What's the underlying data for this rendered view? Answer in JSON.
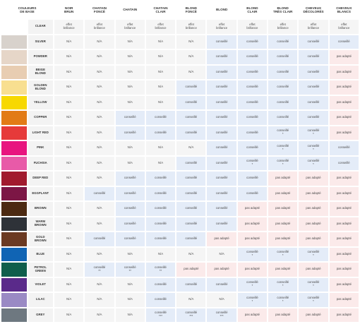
{
  "header": {
    "base_colors": "COULEURS\nDE BASE",
    "columns": [
      "NOIR\nBRUN",
      "CHATAIN\nFONCÉ",
      "CHATAIN",
      "CHATAIN\nCLAIR",
      "BLOND\nFONCÉ",
      "BLOND",
      "BLOND\nCLAIR",
      "BLOND\nTRÈS CLAIR",
      "CHEVEUX\nDÉCOLORÉS",
      "CHEVEUX\nBLANCS"
    ]
  },
  "colors": {
    "na_bg": "#f5f5f5",
    "conseille_bg": "#e4ecf8",
    "pas_adapte_bg": "#fbeaea"
  },
  "rows": [
    {
      "name": "CLEAR",
      "swatch": "#ffffff",
      "cells": [
        {
          "t": "effet\nbrillance",
          "s": "ef"
        },
        {
          "t": "effet\nbrillance",
          "s": "ef"
        },
        {
          "t": "effet\nbrillance",
          "s": "ef"
        },
        {
          "t": "effet\nbrillance",
          "s": "ef"
        },
        {
          "t": "effet\nbrillance",
          "s": "ef"
        },
        {
          "t": "effet\nbrillance",
          "s": "ef"
        },
        {
          "t": "effet\nbrillance",
          "s": "ef"
        },
        {
          "t": "effet\nbrillance",
          "s": "ef"
        },
        {
          "t": "effet\nbrillance",
          "s": "ef"
        },
        {
          "t": "effet\nbrillance",
          "s": "ef"
        }
      ]
    },
    {
      "name": "SILVER",
      "swatch": "#d8d2cc",
      "cells": [
        {
          "t": "N/A",
          "s": "na"
        },
        {
          "t": "N/A",
          "s": "na"
        },
        {
          "t": "N/A",
          "s": "na"
        },
        {
          "t": "N/A",
          "s": "na"
        },
        {
          "t": "N/A",
          "s": "na"
        },
        {
          "t": "conseillé",
          "s": "co"
        },
        {
          "t": "conseillé",
          "s": "co"
        },
        {
          "t": "conseillé",
          "s": "co"
        },
        {
          "t": "conseillé",
          "s": "co"
        },
        {
          "t": "conseillé",
          "s": "co"
        }
      ]
    },
    {
      "name": "POWDER",
      "swatch": "#e6d6c8",
      "cells": [
        {
          "t": "N/A",
          "s": "na"
        },
        {
          "t": "N/A",
          "s": "na"
        },
        {
          "t": "N/A",
          "s": "na"
        },
        {
          "t": "N/A",
          "s": "na"
        },
        {
          "t": "N/A",
          "s": "na"
        },
        {
          "t": "conseillé",
          "s": "co"
        },
        {
          "t": "conseillé",
          "s": "co"
        },
        {
          "t": "conseillé",
          "s": "co"
        },
        {
          "t": "conseillé",
          "s": "co"
        },
        {
          "t": "pas adapté",
          "s": "pa"
        }
      ]
    },
    {
      "name": "BEIGE\nBLOND",
      "swatch": "#e8cdb2",
      "cells": [
        {
          "t": "N/A",
          "s": "na"
        },
        {
          "t": "N/A",
          "s": "na"
        },
        {
          "t": "N/A",
          "s": "na"
        },
        {
          "t": "N/A",
          "s": "na"
        },
        {
          "t": "N/A",
          "s": "na"
        },
        {
          "t": "conseillé",
          "s": "co"
        },
        {
          "t": "conseillé",
          "s": "co"
        },
        {
          "t": "conseillé",
          "s": "co"
        },
        {
          "t": "conseillé",
          "s": "co"
        },
        {
          "t": "pas adapté",
          "s": "pa"
        }
      ]
    },
    {
      "name": "GOLDEN\nBLOND",
      "swatch": "#f8df90",
      "cells": [
        {
          "t": "N/A",
          "s": "na"
        },
        {
          "t": "N/A",
          "s": "na"
        },
        {
          "t": "N/A",
          "s": "na"
        },
        {
          "t": "N/A",
          "s": "na"
        },
        {
          "t": "conseillé",
          "s": "co"
        },
        {
          "t": "conseillé",
          "s": "co"
        },
        {
          "t": "conseillé",
          "s": "co"
        },
        {
          "t": "conseillé",
          "s": "co"
        },
        {
          "t": "conseillé",
          "s": "co"
        },
        {
          "t": "pas adapté",
          "s": "pa"
        }
      ]
    },
    {
      "name": "YELLOW",
      "swatch": "#f7d800",
      "cells": [
        {
          "t": "N/A",
          "s": "na"
        },
        {
          "t": "N/A",
          "s": "na"
        },
        {
          "t": "N/A",
          "s": "na"
        },
        {
          "t": "N/A",
          "s": "na"
        },
        {
          "t": "conseillé",
          "s": "co"
        },
        {
          "t": "conseillé",
          "s": "co"
        },
        {
          "t": "conseillé",
          "s": "co"
        },
        {
          "t": "conseillé",
          "s": "co"
        },
        {
          "t": "conseillé",
          "s": "co"
        },
        {
          "t": "pas adapté",
          "s": "pa"
        }
      ]
    },
    {
      "name": "COPPER",
      "swatch": "#e27b16",
      "cells": [
        {
          "t": "N/A",
          "s": "na"
        },
        {
          "t": "N/A",
          "s": "na"
        },
        {
          "t": "conseillé",
          "s": "co"
        },
        {
          "t": "conseillé",
          "s": "co"
        },
        {
          "t": "conseillé",
          "s": "co"
        },
        {
          "t": "conseillé",
          "s": "co"
        },
        {
          "t": "conseillé",
          "s": "co"
        },
        {
          "t": "conseillé",
          "s": "co"
        },
        {
          "t": "conseillé",
          "s": "co"
        },
        {
          "t": "pas adapté",
          "s": "pa"
        }
      ]
    },
    {
      "name": "LIGHT RED",
      "swatch": "#e63a3a",
      "cells": [
        {
          "t": "N/A",
          "s": "na"
        },
        {
          "t": "N/A",
          "s": "na"
        },
        {
          "t": "conseillé",
          "s": "co"
        },
        {
          "t": "conseillé",
          "s": "co"
        },
        {
          "t": "conseillé",
          "s": "co"
        },
        {
          "t": "conseillé",
          "s": "co"
        },
        {
          "t": "conseillé",
          "s": "co"
        },
        {
          "t": "conseillé\n*",
          "s": "co"
        },
        {
          "t": "conseillé\n*",
          "s": "co"
        },
        {
          "t": "pas adapté",
          "s": "pa"
        }
      ]
    },
    {
      "name": "PINK",
      "swatch": "#e8157f",
      "cells": [
        {
          "t": "N/A",
          "s": "na"
        },
        {
          "t": "N/A",
          "s": "na"
        },
        {
          "t": "N/A",
          "s": "na"
        },
        {
          "t": "N/A",
          "s": "na"
        },
        {
          "t": "N/A",
          "s": "na"
        },
        {
          "t": "conseillé",
          "s": "co"
        },
        {
          "t": "conseillé",
          "s": "co"
        },
        {
          "t": "conseillé\n*",
          "s": "co"
        },
        {
          "t": "conseillé\n*",
          "s": "co"
        },
        {
          "t": "conseillé",
          "s": "co"
        }
      ]
    },
    {
      "name": "FUCHSIA",
      "swatch": "#e85aa8",
      "cells": [
        {
          "t": "N/A",
          "s": "na"
        },
        {
          "t": "N/A",
          "s": "na"
        },
        {
          "t": "N/A",
          "s": "na"
        },
        {
          "t": "N/A",
          "s": "na"
        },
        {
          "t": "conseillé",
          "s": "co"
        },
        {
          "t": "conseillé",
          "s": "co"
        },
        {
          "t": "conseillé\n*",
          "s": "co"
        },
        {
          "t": "conseillé\n*",
          "s": "co"
        },
        {
          "t": "conseillé\n*",
          "s": "co"
        },
        {
          "t": "conseillé",
          "s": "co"
        }
      ]
    },
    {
      "name": "DEEP RED",
      "swatch": "#a11a2e",
      "cells": [
        {
          "t": "N/A",
          "s": "na"
        },
        {
          "t": "N/A",
          "s": "na"
        },
        {
          "t": "conseillé",
          "s": "co"
        },
        {
          "t": "conseillé",
          "s": "co"
        },
        {
          "t": "conseillé",
          "s": "co"
        },
        {
          "t": "conseillé",
          "s": "co"
        },
        {
          "t": "conseillé",
          "s": "co"
        },
        {
          "t": "pas adapté",
          "s": "pa"
        },
        {
          "t": "pas adapté",
          "s": "pa"
        },
        {
          "t": "pas adapté",
          "s": "pa"
        }
      ]
    },
    {
      "name": "EGGPLANT",
      "swatch": "#7c1645",
      "cells": [
        {
          "t": "N/A",
          "s": "na"
        },
        {
          "t": "conseillé",
          "s": "co"
        },
        {
          "t": "conseillé",
          "s": "co"
        },
        {
          "t": "conseillé",
          "s": "co"
        },
        {
          "t": "conseillé",
          "s": "co"
        },
        {
          "t": "conseillé",
          "s": "co"
        },
        {
          "t": "conseillé",
          "s": "co"
        },
        {
          "t": "pas adapté",
          "s": "pa"
        },
        {
          "t": "pas adapté",
          "s": "pa"
        },
        {
          "t": "pas adapté",
          "s": "pa"
        }
      ]
    },
    {
      "name": "BROWN",
      "swatch": "#4c2a12",
      "cells": [
        {
          "t": "N/A",
          "s": "na"
        },
        {
          "t": "N/A",
          "s": "na"
        },
        {
          "t": "conseillé",
          "s": "co"
        },
        {
          "t": "conseillé",
          "s": "co"
        },
        {
          "t": "conseillé",
          "s": "co"
        },
        {
          "t": "conseillé",
          "s": "co"
        },
        {
          "t": "pas adapté",
          "s": "pa"
        },
        {
          "t": "pas adapté",
          "s": "pa"
        },
        {
          "t": "pas adapté",
          "s": "pa"
        },
        {
          "t": "pas adapté",
          "s": "pa"
        }
      ]
    },
    {
      "name": "WARM\nBROWN",
      "swatch": "#2e3238",
      "cells": [
        {
          "t": "N/A",
          "s": "na"
        },
        {
          "t": "N/A",
          "s": "na"
        },
        {
          "t": "conseillé",
          "s": "co"
        },
        {
          "t": "conseillé",
          "s": "co"
        },
        {
          "t": "conseillé",
          "s": "co"
        },
        {
          "t": "conseillé",
          "s": "co"
        },
        {
          "t": "pas adapté",
          "s": "pa"
        },
        {
          "t": "pas adapté",
          "s": "pa"
        },
        {
          "t": "pas adapté",
          "s": "pa"
        },
        {
          "t": "pas adapté",
          "s": "pa"
        }
      ]
    },
    {
      "name": "GOLD\nBROWN",
      "swatch": "#6b3a22",
      "cells": [
        {
          "t": "N/A",
          "s": "na"
        },
        {
          "t": "conseillé",
          "s": "co"
        },
        {
          "t": "conseillé",
          "s": "co"
        },
        {
          "t": "conseillé",
          "s": "co"
        },
        {
          "t": "conseillé",
          "s": "co"
        },
        {
          "t": "pas adapté",
          "s": "pa"
        },
        {
          "t": "pas adapté",
          "s": "pa"
        },
        {
          "t": "pas adapté",
          "s": "pa"
        },
        {
          "t": "pas adapté",
          "s": "pa"
        },
        {
          "t": "pas adapté",
          "s": "pa"
        }
      ]
    },
    {
      "name": "BLUE",
      "swatch": "#1064b4",
      "cells": [
        {
          "t": "N/A",
          "s": "na"
        },
        {
          "t": "N/A",
          "s": "na"
        },
        {
          "t": "N/A",
          "s": "na"
        },
        {
          "t": "N/A",
          "s": "na"
        },
        {
          "t": "N/A",
          "s": "na"
        },
        {
          "t": "N/A",
          "s": "na"
        },
        {
          "t": "conseillé\n*",
          "s": "co"
        },
        {
          "t": "conseillé\n*",
          "s": "co"
        },
        {
          "t": "conseillé\n*",
          "s": "co"
        },
        {
          "t": "pas adapté",
          "s": "pa"
        }
      ]
    },
    {
      "name": "PETROL\nGREEN",
      "swatch": "#0f5e4c",
      "cells": [
        {
          "t": "N/A",
          "s": "na"
        },
        {
          "t": "conseillé\n**",
          "s": "co"
        },
        {
          "t": "conseillé\n**",
          "s": "co"
        },
        {
          "t": "conseillé\n**",
          "s": "co"
        },
        {
          "t": "pas adapté",
          "s": "pa"
        },
        {
          "t": "pas adapté",
          "s": "pa"
        },
        {
          "t": "pas adapté",
          "s": "pa"
        },
        {
          "t": "pas adapté",
          "s": "pa"
        },
        {
          "t": "pas adapté",
          "s": "pa"
        },
        {
          "t": "pas adapté",
          "s": "pa"
        }
      ]
    },
    {
      "name": "VIOLET",
      "swatch": "#5a2a8a",
      "cells": [
        {
          "t": "N/A",
          "s": "na"
        },
        {
          "t": "N/A",
          "s": "na"
        },
        {
          "t": "N/A",
          "s": "na"
        },
        {
          "t": "conseillé",
          "s": "co"
        },
        {
          "t": "conseillé",
          "s": "co"
        },
        {
          "t": "conseillé",
          "s": "co"
        },
        {
          "t": "conseillé\n*",
          "s": "co"
        },
        {
          "t": "conseillé\n*",
          "s": "co"
        },
        {
          "t": "conseillé\n*",
          "s": "co"
        },
        {
          "t": "pas adapté",
          "s": "pa"
        }
      ]
    },
    {
      "name": "LILAC",
      "swatch": "#9a8ac4",
      "cells": [
        {
          "t": "N/A",
          "s": "na"
        },
        {
          "t": "N/A",
          "s": "na"
        },
        {
          "t": "N/A",
          "s": "na"
        },
        {
          "t": "conseillé",
          "s": "co"
        },
        {
          "t": "N/A",
          "s": "na"
        },
        {
          "t": "N/A",
          "s": "na"
        },
        {
          "t": "conseillé\n*",
          "s": "co"
        },
        {
          "t": "conseillé\n*",
          "s": "co"
        },
        {
          "t": "conseillé\n*",
          "s": "co"
        },
        {
          "t": "pas adapté",
          "s": "pa"
        }
      ]
    },
    {
      "name": "GREY",
      "swatch": "#6e7880",
      "cells": [
        {
          "t": "N/A",
          "s": "na"
        },
        {
          "t": "N/A",
          "s": "na"
        },
        {
          "t": "N/A",
          "s": "na"
        },
        {
          "t": "conseillé\n***",
          "s": "co"
        },
        {
          "t": "conseillé\n***",
          "s": "co"
        },
        {
          "t": "conseillé\n***",
          "s": "co"
        },
        {
          "t": "pas adapté",
          "s": "pa"
        },
        {
          "t": "pas adapté",
          "s": "pa"
        },
        {
          "t": "pas adapté",
          "s": "pa"
        },
        {
          "t": "pas adapté",
          "s": "pa"
        }
      ]
    }
  ]
}
